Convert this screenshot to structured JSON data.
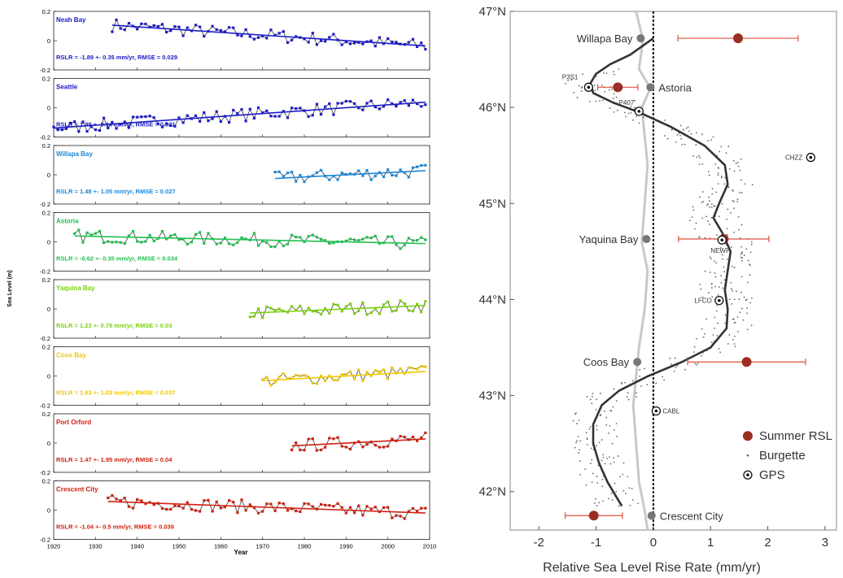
{
  "chart_data": [
    {
      "type": "line",
      "ylabel": "Sea Level (m)",
      "xlabel": "Year",
      "xlim": [
        1920,
        2010
      ],
      "xticks": [
        1920,
        1930,
        1940,
        1950,
        1960,
        1970,
        1980,
        1990,
        2000,
        2010
      ],
      "ylim": [
        -0.2,
        0.2
      ],
      "yticks": [
        0.2,
        0,
        -0.2
      ],
      "panels": [
        {
          "name": "Neah Bay",
          "color": "#1c1cc8",
          "start": 1934,
          "end": 2009,
          "slope": -1.89,
          "stat": "RSLR = -1.89 +- 0.35 mm/yr,  RMSE = 0.029"
        },
        {
          "name": "Seattle",
          "color": "#1c1cc8",
          "start": 1920,
          "end": 2009,
          "slope": 1.99,
          "stat": "RSLR = 1.99 +- 0.14 mm/yr,  RMSE = 0.021"
        },
        {
          "name": "Willapa Bay",
          "color": "#1e88d8",
          "start": 1973,
          "end": 2009,
          "slope": 1.48,
          "stat": "RSLR = 1.48 +- 1.05 mm/yr,  RMSE = 0.027"
        },
        {
          "name": "Astoria",
          "color": "#20c050",
          "start": 1925,
          "end": 2009,
          "slope": -0.62,
          "stat": "RSLR = -0.62 +- 0.35 mm/yr,  RMSE = 0.034"
        },
        {
          "name": "Yaquina Bay",
          "color": "#7cd010",
          "start": 1967,
          "end": 2009,
          "slope": 1.23,
          "stat": "RSLR = 1.23 +- 0.79 mm/yr,  RMSE = 0.03"
        },
        {
          "name": "Coos Bay",
          "color": "#f0c800",
          "start": 1970,
          "end": 2009,
          "slope": 1.63,
          "stat": "RSLR = 1.63 +- 1.03 mm/yr,  RMSE = 0.037"
        },
        {
          "name": "Port Orford",
          "color": "#d02010",
          "start": 1977,
          "end": 2009,
          "slope": 1.47,
          "stat": "RSLR = 1.47 +- 1.95 mm/yr,  RMSE = 0.04"
        },
        {
          "name": "Crescent City",
          "color": "#d02010",
          "start": 1933,
          "end": 2009,
          "slope": -1.04,
          "stat": "RSLR = -1.04 +- 0.5 mm/yr,  RMSE = 0.039"
        }
      ]
    },
    {
      "type": "scatter",
      "xlabel": "Relative Sea Level Rise Rate (mm/yr)",
      "xlim": [
        -2.5,
        3.2
      ],
      "xticks": [
        -2,
        -1,
        0,
        1,
        2,
        3
      ],
      "ylim": [
        41.6,
        47
      ],
      "yticks": [
        42,
        43,
        44,
        45,
        46,
        47
      ],
      "ytick_labels": [
        "42°N",
        "43°N",
        "44°N",
        "45°N",
        "46°N",
        "47°N"
      ],
      "legend": {
        "position": "bottom-right",
        "entries": [
          "Summer RSL",
          "Burgette",
          "GPS"
        ]
      },
      "summer_rsl": [
        {
          "lat": 46.72,
          "x": 1.48,
          "err": 1.05
        },
        {
          "lat": 46.21,
          "x": -0.62,
          "err": 0.35
        },
        {
          "lat": 44.63,
          "x": 1.23,
          "err": 0.79
        },
        {
          "lat": 43.35,
          "x": 1.63,
          "err": 1.03
        },
        {
          "lat": 41.75,
          "x": -1.04,
          "err": 0.5
        }
      ],
      "stations": [
        {
          "name": "Willapa Bay",
          "lat": 46.72,
          "x": -0.22
        },
        {
          "name": "Astoria",
          "lat": 46.21,
          "x": -0.05
        },
        {
          "name": "Yaquina Bay",
          "lat": 44.63,
          "x": -0.12
        },
        {
          "name": "Coos Bay",
          "lat": 43.35,
          "x": -0.28
        },
        {
          "name": "Crescent City",
          "lat": 41.75,
          "x": -0.03
        }
      ],
      "gps": [
        {
          "name": "P3S1",
          "lat": 46.21,
          "x": -1.13
        },
        {
          "name": "P407",
          "lat": 45.96,
          "x": -0.25
        },
        {
          "name": "CHZZ",
          "lat": 45.48,
          "x": 2.75
        },
        {
          "name": "NEWP",
          "lat": 44.62,
          "x": 1.2
        },
        {
          "name": "LFCO",
          "lat": 43.99,
          "x": 1.15
        },
        {
          "name": "CABL",
          "lat": 42.84,
          "x": 0.05
        }
      ],
      "curve": [
        [
          46.72,
          0.0
        ],
        [
          46.55,
          -0.4
        ],
        [
          46.45,
          -0.75
        ],
        [
          46.35,
          -1.0
        ],
        [
          46.25,
          -1.1
        ],
        [
          46.15,
          -1.05
        ],
        [
          46.05,
          -0.7
        ],
        [
          45.95,
          -0.25
        ],
        [
          45.8,
          0.3
        ],
        [
          45.6,
          0.9
        ],
        [
          45.4,
          1.25
        ],
        [
          45.2,
          1.3
        ],
        [
          45.0,
          1.15
        ],
        [
          44.85,
          1.05
        ],
        [
          44.7,
          1.2
        ],
        [
          44.5,
          1.35
        ],
        [
          44.3,
          1.3
        ],
        [
          44.1,
          1.25
        ],
        [
          43.9,
          1.3
        ],
        [
          43.7,
          1.28
        ],
        [
          43.5,
          1.0
        ],
        [
          43.35,
          0.5
        ],
        [
          43.2,
          -0.1
        ],
        [
          43.05,
          -0.6
        ],
        [
          42.9,
          -0.9
        ],
        [
          42.7,
          -1.05
        ],
        [
          42.5,
          -1.05
        ],
        [
          42.3,
          -0.95
        ],
        [
          42.1,
          -0.8
        ],
        [
          41.95,
          -0.65
        ],
        [
          41.85,
          -0.55
        ]
      ]
    }
  ]
}
